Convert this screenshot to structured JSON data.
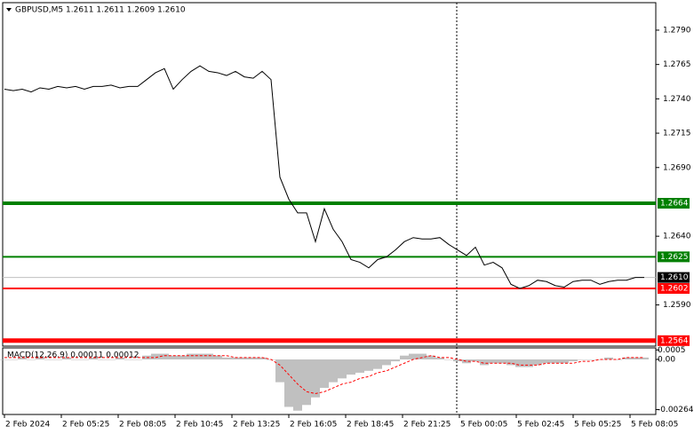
{
  "chart_data": [
    {
      "type": "line",
      "title": "GBPUSD,M5  1.2611 1.2611 1.2609 1.2610",
      "x_labels": [
        "2 Feb 2024",
        "2 Feb 05:25",
        "2 Feb 08:05",
        "2 Feb 10:45",
        "2 Feb 13:25",
        "2 Feb 16:05",
        "2 Feb 18:45",
        "2 Feb 21:25",
        "5 Feb 00:05",
        "5 Feb 02:45",
        "5 Feb 05:25",
        "5 Feb 08:05"
      ],
      "series": [
        {
          "color": "#000000",
          "values": [
            1.2747,
            1.2746,
            1.2747,
            1.2745,
            1.2748,
            1.2747,
            1.2749,
            1.2748,
            1.2749,
            1.2747,
            1.2749,
            1.2749,
            1.275,
            1.2748,
            1.2749,
            1.2749,
            1.2754,
            1.2759,
            1.2762,
            1.2747,
            1.2754,
            1.276,
            1.2764,
            1.276,
            1.2759,
            1.2757,
            1.276,
            1.2756,
            1.2755,
            1.276,
            1.2754,
            1.2683,
            1.2667,
            1.2657,
            1.2657,
            1.2636,
            1.266,
            1.2645,
            1.2636,
            1.2623,
            1.2621,
            1.2617,
            1.2623,
            1.2625,
            1.263,
            1.2636,
            1.2639,
            1.2638,
            1.2638,
            1.2639,
            1.2634,
            1.263,
            1.2626,
            1.2632,
            1.2619,
            1.2621,
            1.2617,
            1.2605,
            1.2602,
            1.2604,
            1.2608,
            1.2607,
            1.2604,
            1.2603,
            1.2607,
            1.2608,
            1.2608,
            1.2605,
            1.2607,
            1.2608,
            1.2608,
            1.261,
            1.261
          ]
        }
      ],
      "ylim": [
        1.256,
        1.281
      ],
      "yticks": [
        {
          "value": 1.279,
          "label": "1.2790"
        },
        1.2765,
        {
          "value": 1.274,
          "label": "1.2740"
        },
        1.2715,
        {
          "value": 1.269,
          "label": "1.2690"
        },
        {
          "value": 1.264,
          "label": "1.2640"
        },
        {
          "value": 1.259,
          "label": "1.2590"
        }
      ],
      "levels": [
        {
          "value": 1.2664,
          "color": "#008000",
          "width": 4
        },
        {
          "value": 1.2625,
          "color": "#008000",
          "width": 2
        },
        {
          "value": 1.2602,
          "color": "#ff0000",
          "width": 2
        },
        {
          "value": 1.2564,
          "color": "#ff0000",
          "width": 5
        }
      ],
      "last_price": {
        "value": 1.261,
        "label": "1.2610"
      }
    },
    {
      "type": "macd",
      "title": "MACD(12,26,9) 0.00011 0.00012",
      "series": [
        {
          "name": "MACD",
          "color": "#c0c0c0",
          "values": [
            0,
            0,
            0.0001,
            0,
            0.0001,
            0,
            0,
            0.0001,
            0,
            0,
            0.0001,
            0,
            0,
            0.0001,
            0,
            0,
            0.0002,
            0.0003,
            0.0003,
            0.0002,
            0.0002,
            0.0003,
            0.0003,
            0.0003,
            0.0002,
            0.0001,
            0.0001,
            0.0001,
            0.0001,
            0.0001,
            0,
            -0.0012,
            -0.0025,
            -0.0027,
            -0.0024,
            -0.002,
            -0.0015,
            -0.0012,
            -0.001,
            -0.0008,
            -0.0007,
            -0.0006,
            -0.0005,
            -0.0003,
            -0.0001,
            0.0002,
            0.0003,
            0.0003,
            0.0002,
            0.0001,
            0,
            -0.0001,
            -0.0002,
            -0.0001,
            -0.0003,
            -0.0002,
            -0.0002,
            -0.0003,
            -0.0004,
            -0.0004,
            -0.0003,
            -0.0002,
            -0.0002,
            -0.0002,
            -0.0001,
            0,
            0,
            0,
            0.0001,
            0,
            0.0001,
            0.0001,
            0.0001
          ]
        },
        {
          "name": "Signal",
          "color": "#ff0000",
          "values": [
            0.0001,
            0.0001,
            0.0001,
            0.0001,
            0.0001,
            0.0001,
            0.0001,
            0.0001,
            0.0001,
            0.0001,
            0.0001,
            0.0001,
            0.0001,
            0.0001,
            0.0001,
            0.0001,
            0.0001,
            0.0001,
            0.0002,
            0.0002,
            0.0002,
            0.0002,
            0.0002,
            0.0002,
            0.0002,
            0.0002,
            0.0001,
            0.0001,
            0.0001,
            0.0001,
            0,
            -0.0003,
            -0.0008,
            -0.0013,
            -0.0017,
            -0.0018,
            -0.0017,
            -0.0015,
            -0.0013,
            -0.0012,
            -0.001,
            -0.0009,
            -0.0007,
            -0.0006,
            -0.0004,
            -0.0002,
            0,
            0.0001,
            0.0002,
            0.0001,
            0.0001,
            0,
            -0.0001,
            -0.0001,
            -0.0002,
            -0.0002,
            -0.0002,
            -0.0002,
            -0.0003,
            -0.0003,
            -0.0003,
            -0.0002,
            -0.0002,
            -0.0002,
            -0.0002,
            -0.0001,
            -0.0001,
            0,
            0,
            0,
            0.0001,
            0.0001,
            0.0001
          ]
        }
      ],
      "ylim": [
        -0.0029,
        0.00056
      ],
      "yticks": [
        0.0005,
        {
          "value": 0,
          "label": "0.00"
        },
        -0.00264
      ]
    }
  ]
}
